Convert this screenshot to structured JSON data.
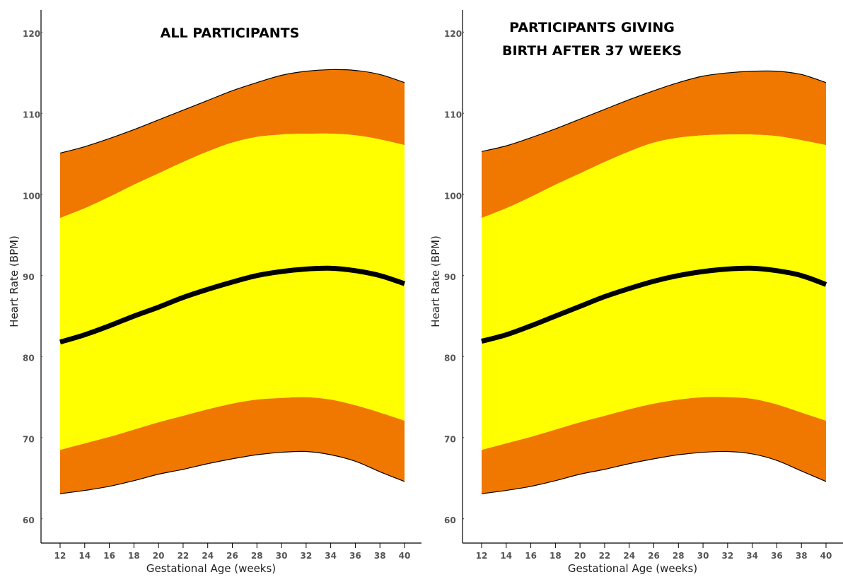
{
  "chart_data": [
    {
      "type": "area",
      "title_lines": [
        "ALL PARTICIPANTS"
      ],
      "xlabel": "Gestational Age (weeks)",
      "ylabel": "Heart Rate (BPM)",
      "x_ticks": [
        12,
        14,
        16,
        18,
        20,
        22,
        24,
        26,
        28,
        30,
        32,
        34,
        36,
        38,
        40
      ],
      "y_ticks": [
        60,
        70,
        80,
        90,
        100,
        110,
        120
      ],
      "xlim": [
        12,
        40
      ],
      "ylim": [
        57,
        122
      ],
      "colors": {
        "outer_band": "#F07800",
        "inner_band": "#FFFF00",
        "median_line": "#000000",
        "edge": "#000000"
      },
      "x": [
        12,
        14,
        16,
        18,
        20,
        22,
        24,
        26,
        28,
        30,
        32,
        34,
        36,
        38,
        40
      ],
      "series": [
        {
          "key": "upper_outer",
          "values": [
            105.3,
            106.1,
            107.1,
            108.2,
            109.4,
            110.6,
            111.8,
            113.0,
            114.0,
            114.9,
            115.4,
            115.6,
            115.5,
            115.0,
            114.0
          ]
        },
        {
          "key": "upper_inner",
          "values": [
            97.3,
            98.5,
            99.9,
            101.4,
            102.8,
            104.2,
            105.5,
            106.6,
            107.3,
            107.6,
            107.7,
            107.7,
            107.5,
            107.0,
            106.3
          ]
        },
        {
          "key": "median",
          "values": [
            82.0,
            82.9,
            84.0,
            85.2,
            86.3,
            87.5,
            88.5,
            89.4,
            90.2,
            90.7,
            91.0,
            91.1,
            90.8,
            90.2,
            89.2
          ]
        },
        {
          "key": "lower_inner",
          "values": [
            68.7,
            69.5,
            70.3,
            71.2,
            72.1,
            72.9,
            73.7,
            74.4,
            74.9,
            75.1,
            75.2,
            74.9,
            74.2,
            73.3,
            72.3
          ]
        },
        {
          "key": "lower_outer",
          "values": [
            63.3,
            63.7,
            64.2,
            64.9,
            65.7,
            66.3,
            67.0,
            67.6,
            68.1,
            68.4,
            68.5,
            68.1,
            67.3,
            66.0,
            64.8
          ]
        }
      ]
    },
    {
      "type": "area",
      "title_lines": [
        "PARTICIPANTS GIVING",
        "BIRTH AFTER 37 WEEKS"
      ],
      "xlabel": "Gestational Age (weeks)",
      "ylabel": "Heart Rate (BPM)",
      "x_ticks": [
        12,
        14,
        16,
        18,
        20,
        22,
        24,
        26,
        28,
        30,
        32,
        34,
        36,
        38,
        40
      ],
      "y_ticks": [
        60,
        70,
        80,
        90,
        100,
        110,
        120
      ],
      "xlim": [
        12,
        40
      ],
      "ylim": [
        57,
        122
      ],
      "colors": {
        "outer_band": "#F07800",
        "inner_band": "#FFFF00",
        "median_line": "#000000",
        "edge": "#000000"
      },
      "x": [
        12,
        14,
        16,
        18,
        20,
        22,
        24,
        26,
        28,
        30,
        32,
        34,
        36,
        38,
        40
      ],
      "series": [
        {
          "key": "upper_outer",
          "values": [
            105.5,
            106.2,
            107.2,
            108.3,
            109.5,
            110.7,
            111.9,
            113.0,
            114.0,
            114.8,
            115.2,
            115.4,
            115.4,
            115.0,
            114.0
          ]
        },
        {
          "key": "upper_inner",
          "values": [
            97.3,
            98.5,
            99.9,
            101.4,
            102.8,
            104.2,
            105.5,
            106.6,
            107.2,
            107.5,
            107.6,
            107.6,
            107.4,
            106.9,
            106.3
          ]
        },
        {
          "key": "median",
          "values": [
            82.1,
            82.9,
            84.0,
            85.2,
            86.4,
            87.6,
            88.6,
            89.5,
            90.2,
            90.7,
            91.0,
            91.1,
            90.8,
            90.2,
            89.1
          ]
        },
        {
          "key": "lower_inner",
          "values": [
            68.7,
            69.5,
            70.3,
            71.2,
            72.1,
            72.9,
            73.7,
            74.4,
            74.9,
            75.2,
            75.2,
            75.0,
            74.3,
            73.3,
            72.3
          ]
        },
        {
          "key": "lower_outer",
          "values": [
            63.3,
            63.7,
            64.2,
            64.9,
            65.7,
            66.3,
            67.0,
            67.6,
            68.1,
            68.4,
            68.5,
            68.2,
            67.4,
            66.1,
            64.8
          ]
        }
      ]
    }
  ]
}
